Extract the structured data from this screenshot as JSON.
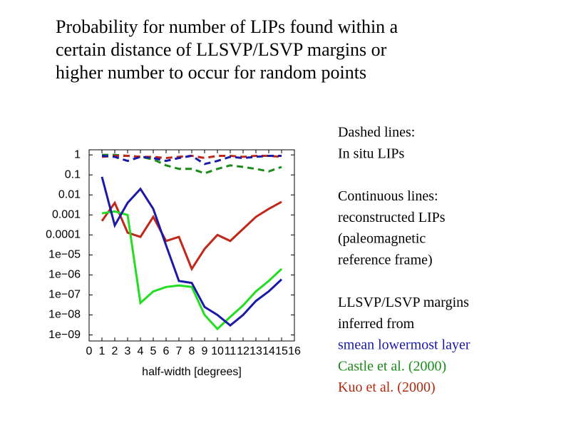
{
  "slide": {
    "title_lines": [
      "Probability for number of LIPs found within a",
      "certain distance of LLSVP/LSVP margins or",
      "higher number to occur for random points"
    ],
    "notes": [
      {
        "lines": [
          {
            "text": "Dashed lines:",
            "color": "#000000"
          },
          {
            "text": "In situ LIPs",
            "color": "#000000"
          }
        ]
      },
      {
        "lines": [
          {
            "text": "Continuous lines:",
            "color": "#000000"
          },
          {
            "text": "reconstructed LIPs",
            "color": "#000000"
          },
          {
            "text": "(paleomagnetic",
            "color": "#000000"
          },
          {
            "text": "reference frame)",
            "color": "#000000"
          }
        ]
      },
      {
        "lines": [
          {
            "text": "LLSVP/LSVP margins",
            "color": "#000000"
          },
          {
            "text": "inferred from",
            "color": "#000000"
          },
          {
            "text": "smean lowermost layer",
            "color": "#1a1aa6"
          },
          {
            "text": "Castle et al. (2000)",
            "color": "#1a8c1a"
          },
          {
            "text": "Kuo et al. (2000)",
            "color": "#b02a10"
          }
        ]
      }
    ]
  },
  "chart_data": {
    "type": "line",
    "xlabel": "half-width [degrees]",
    "log_y": true,
    "x": [
      1,
      2,
      3,
      4,
      5,
      6,
      7,
      8,
      9,
      10,
      11,
      12,
      13,
      14,
      15
    ],
    "xlim": [
      0,
      16
    ],
    "xticks": [
      0,
      1,
      2,
      3,
      4,
      5,
      6,
      7,
      8,
      9,
      10,
      11,
      12,
      13,
      14,
      15,
      16
    ],
    "ylim": [
      5e-10,
      1.8
    ],
    "yticks": [
      {
        "value": 1,
        "label": "1"
      },
      {
        "value": 0.1,
        "label": "0.1"
      },
      {
        "value": 0.01,
        "label": "0.01"
      },
      {
        "value": 0.001,
        "label": "0.001"
      },
      {
        "value": 0.0001,
        "label": "0.0001"
      },
      {
        "value": 1e-05,
        "label": "1e−05"
      },
      {
        "value": 1e-06,
        "label": "1e−06"
      },
      {
        "value": 1e-07,
        "label": "1e−07"
      },
      {
        "value": 1e-08,
        "label": "1e−08"
      },
      {
        "value": 1e-09,
        "label": "1e−09"
      }
    ],
    "series": [
      {
        "color": "#1a8c1a",
        "dashed": true,
        "values": [
          1,
          1,
          0.9,
          0.8,
          0.6,
          0.3,
          0.2,
          0.2,
          0.12,
          0.2,
          0.3,
          0.25,
          0.2,
          0.15,
          0.25
        ]
      },
      {
        "color": "#c0281a",
        "dashed": true,
        "values": [
          0.8,
          0.9,
          0.9,
          0.8,
          0.8,
          0.7,
          0.8,
          0.9,
          0.7,
          0.9,
          0.9,
          0.8,
          0.9,
          0.9,
          0.8
        ]
      },
      {
        "color": "#1a1aa6",
        "dashed": true,
        "values": [
          0.9,
          0.8,
          0.5,
          0.8,
          0.7,
          0.5,
          0.7,
          0.9,
          0.35,
          0.5,
          0.8,
          0.7,
          0.8,
          0.9,
          0.9
        ]
      },
      {
        "color": "#c0281a",
        "dashed": false,
        "values": [
          0.0005,
          0.004,
          0.00013,
          8e-05,
          0.0008,
          5e-05,
          8e-05,
          2e-06,
          2e-05,
          0.0001,
          5e-05,
          0.0002,
          0.0008,
          0.002,
          0.0045
        ]
      },
      {
        "color": "#22dd22",
        "dashed": false,
        "values": [
          0.0012,
          0.0015,
          0.001,
          4e-08,
          1.5e-07,
          2.5e-07,
          3e-07,
          2.5e-07,
          1e-08,
          2e-09,
          8e-09,
          3e-08,
          1.5e-07,
          5e-07,
          2e-06
        ]
      },
      {
        "color": "#1a1aa6",
        "dashed": false,
        "values": [
          0.08,
          0.0003,
          0.004,
          0.02,
          0.002,
          3e-05,
          5e-07,
          4e-07,
          2.5e-08,
          1e-08,
          3e-09,
          1e-08,
          5e-08,
          1.5e-07,
          6e-07
        ]
      }
    ]
  }
}
